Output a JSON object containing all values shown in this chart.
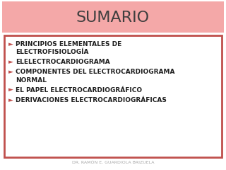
{
  "title": "SUMARIO",
  "title_fontsize": 16,
  "title_color": "#3f3f3f",
  "title_bg_color_top": "#f9c8c8",
  "title_bg_color": "#f4a8a8",
  "bullet_char": "►",
  "bullet_color": "#c0504d",
  "bullet_items": [
    "PRINCIPIOS ELEMENTALES DE\nELECTROFISIOLOGÍA",
    "ELELECTROCARDIOGRAMA",
    "COMPONENTES DEL ELECTROCARDIOGRAMA\nNORMAL",
    "EL PAPEL ELECTROCARDIOGRÁFICO",
    "DERIVACIONES ELECTROCARDIOGRÁFICAS"
  ],
  "bullet_fontsize": 6.5,
  "bullet_color_text": "#1f1f1f",
  "footer": "DR. RAMÓN E. GUARDIOLA BRIZUELA",
  "footer_fontsize": 4.5,
  "footer_color": "#aaaaaa",
  "bg_color": "#ffffff",
  "border_color": "#c0504d"
}
